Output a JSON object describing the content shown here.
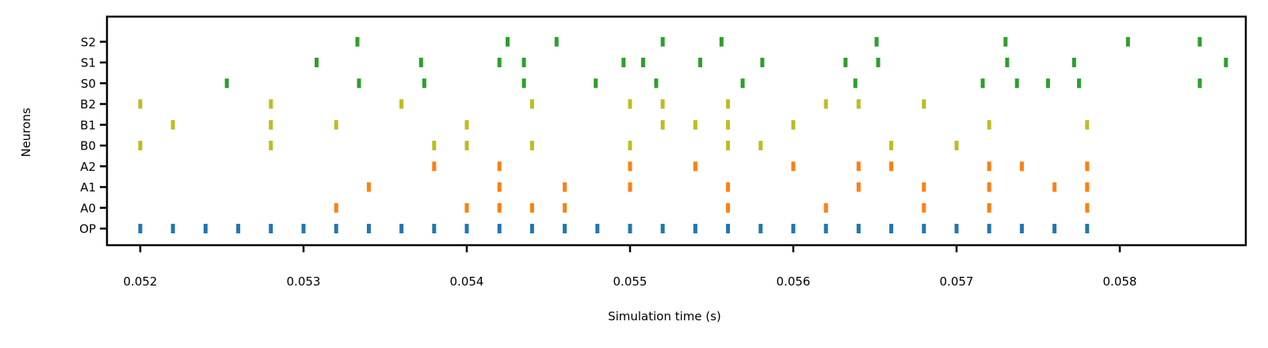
{
  "chart_data": {
    "type": "scatter",
    "subtype": "raster",
    "title": "",
    "xlabel": "Simulation time (s)",
    "ylabel": "Neurons",
    "xlim": [
      0.0518,
      0.0588
    ],
    "xticks": [
      "0.052",
      "0.053",
      "0.054",
      "0.055",
      "0.056",
      "0.057",
      "0.058"
    ],
    "xtick_values": [
      0.052,
      0.053,
      0.054,
      0.055,
      0.056,
      0.057,
      0.058
    ],
    "categories": [
      "OP",
      "A0",
      "A1",
      "A2",
      "B0",
      "B1",
      "B2",
      "S0",
      "S1",
      "S2"
    ],
    "grid": false,
    "legend": "none",
    "series": [
      {
        "category": "OP",
        "color": "#1f77b4",
        "x": [
          0.052,
          0.0522,
          0.0524,
          0.0526,
          0.0528,
          0.053,
          0.0532,
          0.0534,
          0.0536,
          0.0538,
          0.054,
          0.0542,
          0.0544,
          0.0546,
          0.0548,
          0.055,
          0.0552,
          0.0554,
          0.0556,
          0.0558,
          0.056,
          0.0562,
          0.0564,
          0.0566,
          0.0568,
          0.057,
          0.0572,
          0.0574,
          0.0576,
          0.0578
        ]
      },
      {
        "category": "A0",
        "color": "#ff7f0e",
        "x": [
          0.0532,
          0.054,
          0.0542,
          0.0544,
          0.0546,
          0.0556,
          0.0562,
          0.0568,
          0.0572,
          0.0578
        ]
      },
      {
        "category": "A1",
        "color": "#ff7f0e",
        "x": [
          0.0534,
          0.0542,
          0.0546,
          0.055,
          0.0556,
          0.0564,
          0.0568,
          0.0572,
          0.0576,
          0.0578
        ]
      },
      {
        "category": "A2",
        "color": "#ff7f0e",
        "x": [
          0.0538,
          0.0542,
          0.055,
          0.0554,
          0.056,
          0.0564,
          0.0566,
          0.0572,
          0.0574,
          0.0578
        ]
      },
      {
        "category": "B0",
        "color": "#bcbd22",
        "x": [
          0.052,
          0.0528,
          0.0538,
          0.054,
          0.0544,
          0.055,
          0.0556,
          0.0558,
          0.0566,
          0.057
        ]
      },
      {
        "category": "B1",
        "color": "#bcbd22",
        "x": [
          0.0522,
          0.0528,
          0.0532,
          0.054,
          0.0552,
          0.0554,
          0.0556,
          0.056,
          0.0572,
          0.0578
        ]
      },
      {
        "category": "B2",
        "color": "#bcbd22",
        "x": [
          0.052,
          0.0528,
          0.0536,
          0.0544,
          0.055,
          0.0552,
          0.0556,
          0.0562,
          0.0564,
          0.0568
        ]
      },
      {
        "category": "S0",
        "color": "#2ca02c",
        "x": [
          0.05253,
          0.05334,
          0.05374,
          0.05435,
          0.05479,
          0.05516,
          0.05569,
          0.05638,
          0.05716,
          0.05737,
          0.05756,
          0.05775,
          0.05849
        ]
      },
      {
        "category": "S1",
        "color": "#2ca02c",
        "x": [
          0.05308,
          0.05372,
          0.0542,
          0.05435,
          0.05496,
          0.05508,
          0.05543,
          0.05581,
          0.05632,
          0.05652,
          0.05731,
          0.05772,
          0.05865
        ]
      },
      {
        "category": "S2",
        "color": "#2ca02c",
        "x": [
          0.05333,
          0.05425,
          0.05455,
          0.0552,
          0.05556,
          0.05651,
          0.0573,
          0.05805,
          0.05849
        ]
      }
    ]
  }
}
